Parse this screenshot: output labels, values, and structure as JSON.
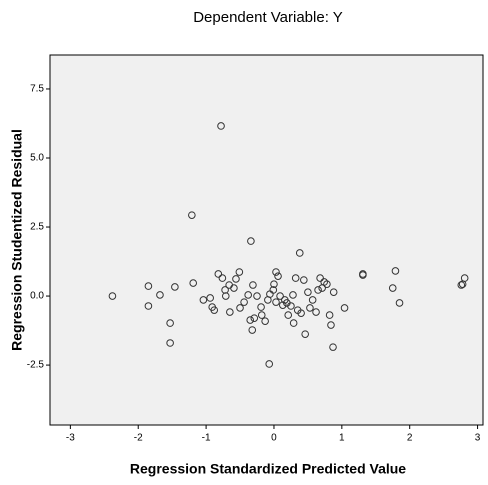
{
  "chart_data": {
    "type": "scatter",
    "title": "Dependent Variable: Y",
    "x_label": "Regression Standardized Predicted Value",
    "y_label": "Regression Studentized Residual",
    "x": [
      -2.38,
      -1.85,
      -1.85,
      -1.68,
      -1.46,
      -1.53,
      -1.53,
      -1.21,
      -1.19,
      -1.04,
      -0.94,
      -0.91,
      -0.88,
      -0.82,
      -0.78,
      -0.76,
      -0.72,
      -0.71,
      -0.66,
      -0.65,
      -0.59,
      -0.56,
      -0.51,
      -0.5,
      -0.44,
      -0.38,
      -0.35,
      -0.34,
      -0.32,
      -0.31,
      -0.29,
      -0.25,
      -0.19,
      -0.18,
      -0.13,
      -0.09,
      -0.07,
      -0.06,
      -0.01,
      0,
      0.03,
      0.06,
      0.03,
      0.09,
      0.13,
      0.16,
      0.19,
      0.21,
      0.25,
      0.28,
      0.29,
      0.32,
      0.35,
      0.38,
      0.4,
      0.44,
      0.46,
      0.5,
      0.53,
      0.57,
      0.62,
      0.65,
      0.68,
      0.71,
      0.74,
      0.78,
      0.82,
      0.84,
      0.87,
      0.88,
      1.04,
      1.31,
      1.31,
      1.75,
      1.79,
      1.85,
      2.76,
      2.81,
      2.78
    ],
    "values": [
      0,
      0.36,
      -0.36,
      0.04,
      0.33,
      -0.98,
      -1.7,
      2.93,
      0.47,
      -0.14,
      -0.07,
      -0.4,
      -0.51,
      0.8,
      6.16,
      0.65,
      0.22,
      0,
      0.4,
      -0.58,
      0.29,
      0.62,
      0.87,
      -0.43,
      -0.22,
      0.04,
      -0.87,
      1.99,
      -1.23,
      0.4,
      -0.8,
      0,
      -0.4,
      -0.69,
      -0.91,
      -0.14,
      -2.46,
      0.07,
      0.22,
      0.43,
      0.87,
      0.72,
      -0.22,
      0,
      -0.33,
      -0.14,
      -0.25,
      -0.69,
      -0.36,
      0.04,
      -0.98,
      0.65,
      -0.51,
      1.56,
      -0.62,
      0.58,
      -1.38,
      0.14,
      -0.43,
      -0.14,
      -0.58,
      0.22,
      0.65,
      0.29,
      0.51,
      0.43,
      -0.69,
      -1.05,
      -1.85,
      0.14,
      -0.43,
      0.8,
      0.76,
      0.29,
      0.91,
      -0.25,
      0.4,
      0.65,
      0.43
    ],
    "color": "#333333",
    "background": "#f0f0f0",
    "xlim": [
      -3.3,
      3.08
    ],
    "xticks": [
      -3,
      -2,
      -1,
      0,
      1,
      2,
      3
    ],
    "ylim": [
      -4.67,
      8.73
    ],
    "yticks": [
      {
        "value": 7.5,
        "label": "7.5"
      },
      {
        "value": 5,
        "label": "5.0"
      },
      {
        "value": 2.5,
        "label": "2.5"
      },
      {
        "value": 0,
        "label": "0.0"
      },
      {
        "value": -2.5,
        "label": "-2.5"
      }
    ],
    "grid": false
  }
}
